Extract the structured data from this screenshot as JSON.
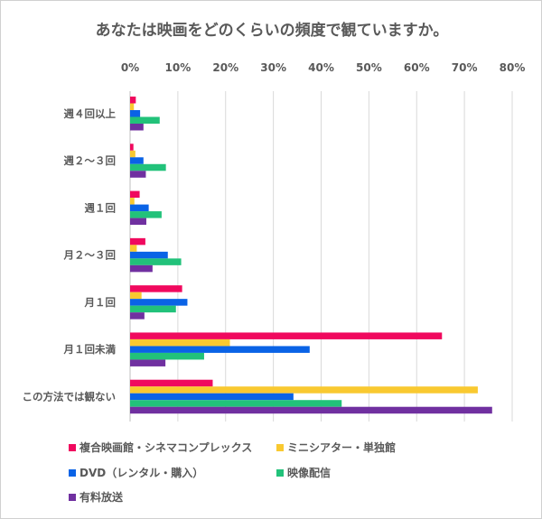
{
  "chart_data": {
    "type": "bar",
    "orientation": "horizontal",
    "title": "あなたは映画をどのくらいの頻度で観ていますか。",
    "categories": [
      "週４回以上",
      "週２～３回",
      "週１回",
      "月２～３回",
      "月１回",
      "月１回未満",
      "この方法では観ない"
    ],
    "xlim": [
      0,
      80
    ],
    "xticks": [
      "0%",
      "10%",
      "20%",
      "30%",
      "40%",
      "50%",
      "60%",
      "70%",
      "80%"
    ],
    "grid": true,
    "legend_position": "bottom",
    "series": [
      {
        "name": "複合映画館・シネマコンプレックス",
        "color": "#f0095e",
        "values": [
          1.2,
          0.7,
          2.0,
          3.2,
          10.9,
          65.3,
          17.3
        ]
      },
      {
        "name": "ミニシアター・単独館",
        "color": "#f9c930",
        "values": [
          0.8,
          1.1,
          0.9,
          1.4,
          2.4,
          20.9,
          72.8
        ]
      },
      {
        "name": "DVD（レンタル・購入）",
        "color": "#0a63e6",
        "values": [
          2.1,
          2.8,
          3.9,
          7.9,
          12.0,
          37.6,
          34.2
        ]
      },
      {
        "name": "映像配信",
        "color": "#22c27a",
        "values": [
          6.2,
          7.5,
          6.6,
          10.7,
          9.6,
          15.5,
          44.3
        ]
      },
      {
        "name": "有料放送",
        "color": "#7030a0",
        "values": [
          2.8,
          3.3,
          3.4,
          4.7,
          3.0,
          7.4,
          75.8
        ]
      }
    ]
  }
}
